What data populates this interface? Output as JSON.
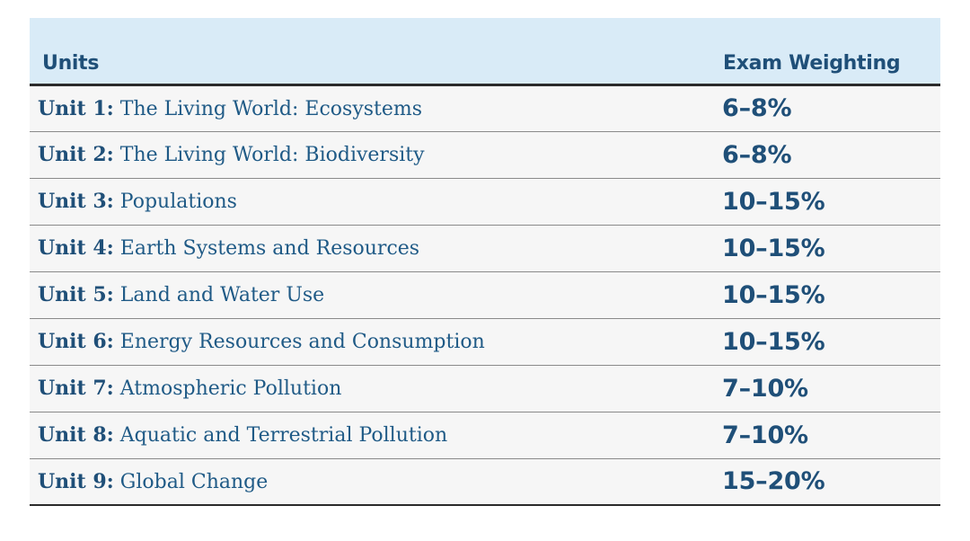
{
  "table": {
    "headers": {
      "units": "Units",
      "weighting": "Exam Weighting"
    },
    "rows": [
      {
        "unit": "Unit 1:",
        "title": "The Living World: Ecosystems",
        "weighting": "6–8%"
      },
      {
        "unit": "Unit 2:",
        "title": "The Living World: Biodiversity",
        "weighting": "6–8%"
      },
      {
        "unit": "Unit 3:",
        "title": "Populations",
        "weighting": "10–15%"
      },
      {
        "unit": "Unit 4:",
        "title": "Earth Systems and Resources",
        "weighting": "10–15%"
      },
      {
        "unit": "Unit 5:",
        "title": "Land and Water Use",
        "weighting": "10–15%"
      },
      {
        "unit": "Unit 6:",
        "title": "Energy Resources and Consumption",
        "weighting": "10–15%"
      },
      {
        "unit": "Unit 7:",
        "title": "Atmospheric Pollution",
        "weighting": "7–10%"
      },
      {
        "unit": "Unit 8:",
        "title": "Aquatic and Terrestrial Pollution",
        "weighting": "7–10%"
      },
      {
        "unit": "Unit 9:",
        "title": "Global Change",
        "weighting": "15–20%"
      }
    ]
  },
  "colors": {
    "header_background": "#d9ebf7",
    "row_background": "#f6f6f6",
    "text_blue": "#1f4f78",
    "rule_dark": "#2b2b2b"
  }
}
